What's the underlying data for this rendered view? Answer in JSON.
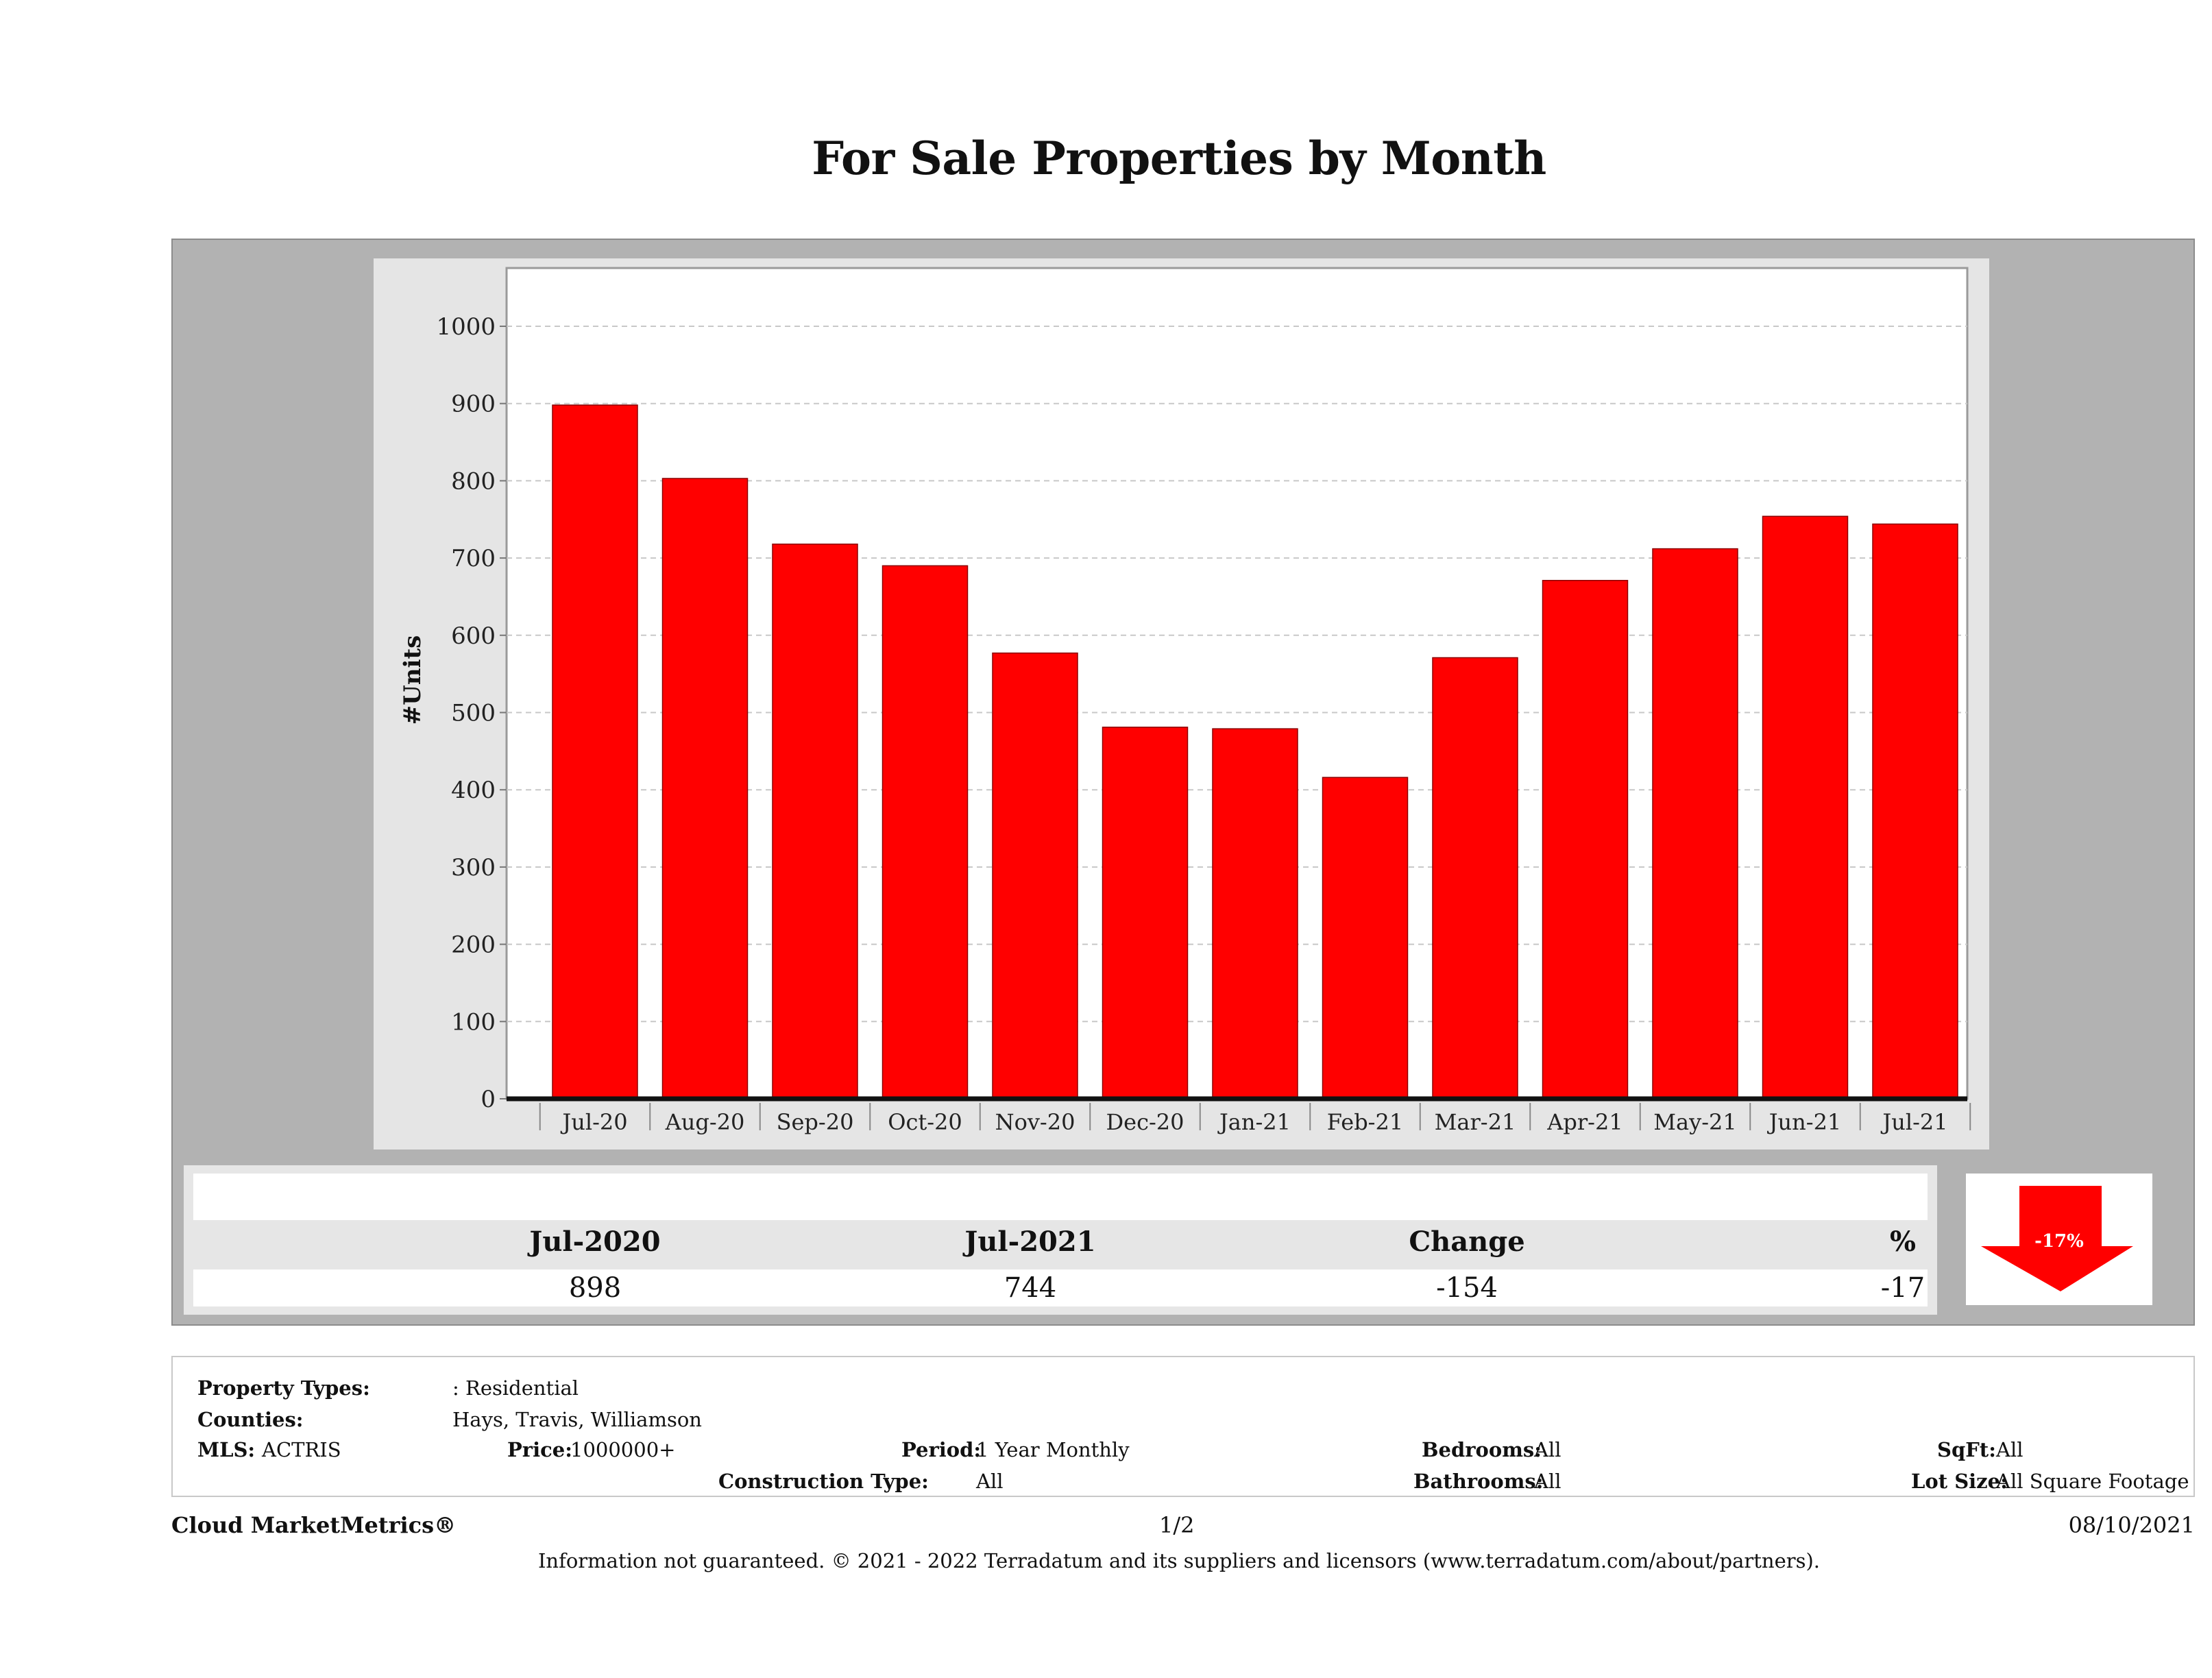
{
  "page": {
    "title": "For Sale Properties by Month"
  },
  "chart_data": {
    "type": "bar",
    "title": "For Sale Properties by Month",
    "xlabel": "",
    "ylabel": "#Units",
    "ylim": [
      0,
      1000
    ],
    "yticks": [
      0,
      100,
      200,
      300,
      400,
      500,
      600,
      700,
      800,
      900,
      1000
    ],
    "grid": true,
    "color": "#ff0000",
    "categories": [
      "Jul-20",
      "Aug-20",
      "Sep-20",
      "Oct-20",
      "Nov-20",
      "Dec-20",
      "Jan-21",
      "Feb-21",
      "Mar-21",
      "Apr-21",
      "May-21",
      "Jun-21",
      "Jul-21"
    ],
    "values": [
      898,
      803,
      718,
      690,
      577,
      481,
      479,
      416,
      571,
      671,
      712,
      754,
      744
    ]
  },
  "summary": {
    "headers": [
      "Jul-2020",
      "Jul-2021",
      "Change",
      "%"
    ],
    "values": [
      "898",
      "744",
      "-154",
      "-17"
    ],
    "arrow_label": "-17%",
    "arrow_direction": "down",
    "arrow_color": "#ff0000"
  },
  "criteria": {
    "property_types_label": "Property Types:",
    "property_types_value": ": Residential",
    "counties_label": "Counties:",
    "counties_value": "Hays, Travis, Williamson",
    "mls_label": "MLS:",
    "mls_value": "ACTRIS",
    "price_label": "Price:",
    "price_value": "1000000+",
    "period_label": "Period:",
    "period_value": "1 Year Monthly",
    "construction_label": "Construction Type:",
    "construction_value": "All",
    "bedrooms_label": "Bedrooms:",
    "bedrooms_value": "All",
    "bathrooms_label": "Bathrooms:",
    "bathrooms_value": "All",
    "sqft_label": "SqFt:",
    "sqft_value": "All",
    "lotsize_label": "Lot Size:",
    "lotsize_value": "All Square Footage"
  },
  "footer": {
    "brand": "Cloud MarketMetrics®",
    "page": "1/2",
    "date": "08/10/2021",
    "disclaimer": "Information not guaranteed. © 2021 - 2022 Terradatum and its suppliers and licensors (www.terradatum.com/about/partners)."
  }
}
